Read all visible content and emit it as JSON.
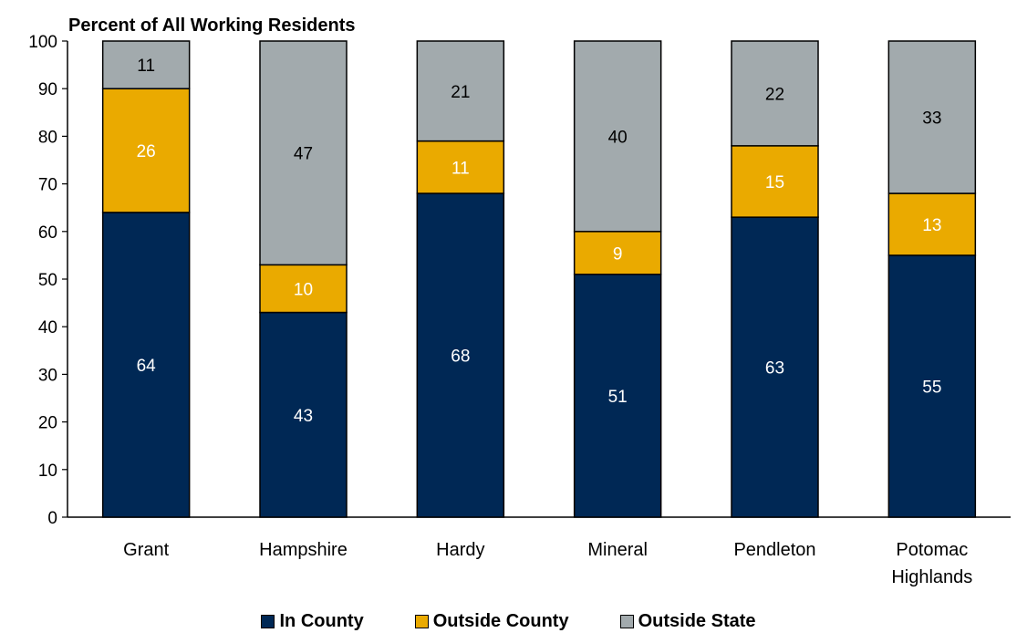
{
  "chart_data": {
    "type": "bar",
    "stacked": true,
    "ylabel": "Percent of All Working Residents",
    "ylim": [
      0,
      100
    ],
    "yticks": [
      0,
      10,
      20,
      30,
      40,
      50,
      60,
      70,
      80,
      90,
      100
    ],
    "grid": false,
    "legend_position": "bottom",
    "categories": [
      "Grant",
      "Hampshire",
      "Hardy",
      "Mineral",
      "Pendleton",
      "Potomac Highlands"
    ],
    "series": [
      {
        "name": "In County",
        "color": "#002855",
        "label_color": "#ffffff",
        "values": [
          64,
          43,
          68,
          51,
          63,
          55
        ]
      },
      {
        "name": "Outside County",
        "color": "#EAAA00",
        "label_color": "#ffffff",
        "values": [
          26,
          10,
          11,
          9,
          15,
          13
        ]
      },
      {
        "name": "Outside State",
        "color": "#A2AAAD",
        "label_color": "#000000",
        "values": [
          11,
          47,
          21,
          40,
          22,
          33
        ]
      }
    ]
  }
}
